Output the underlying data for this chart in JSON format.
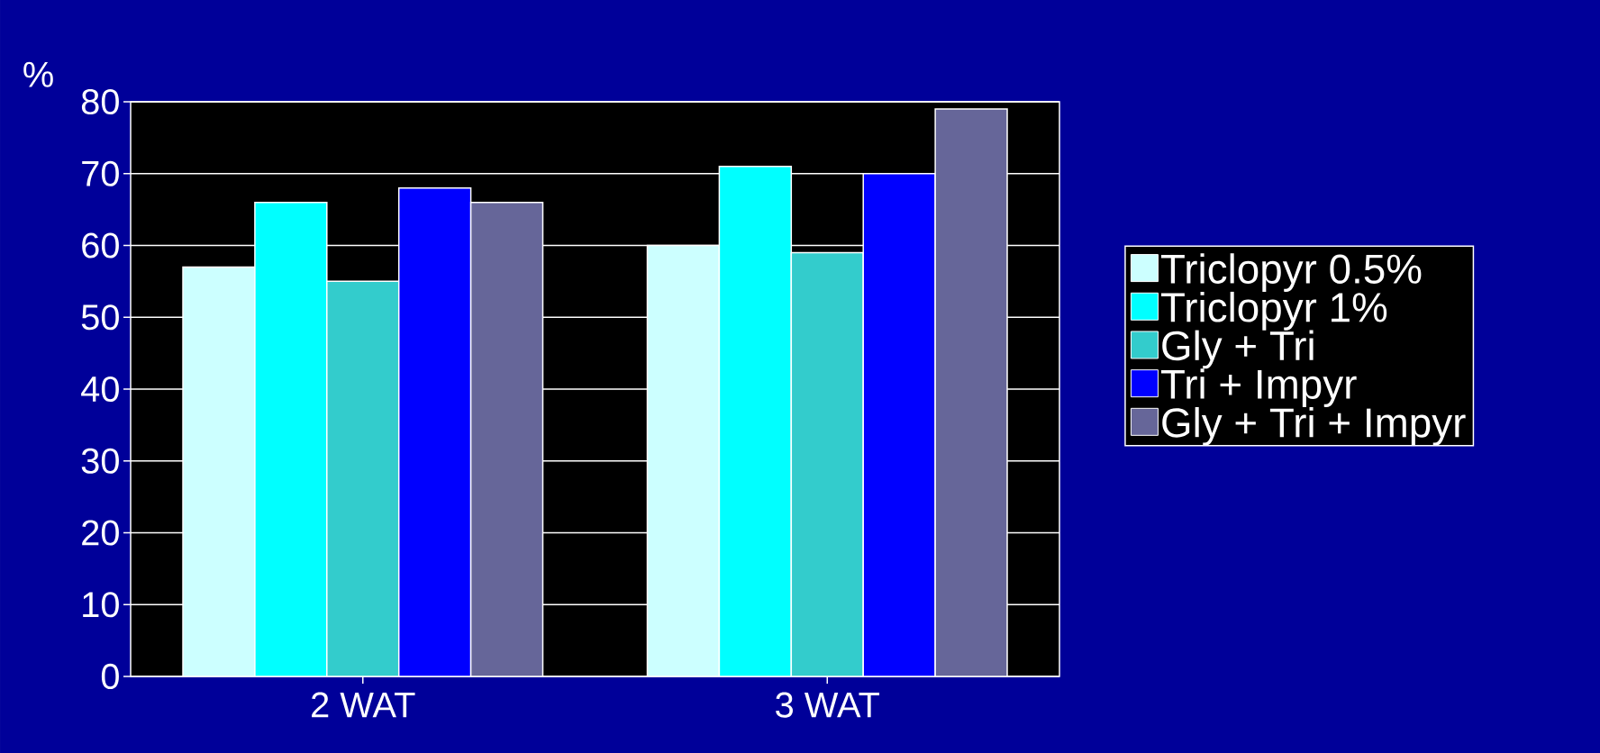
{
  "chart_data": {
    "type": "bar",
    "ylabel": "%",
    "categories": [
      "2 WAT",
      "3 WAT"
    ],
    "series": [
      {
        "name": "Triclopyr 0.5%",
        "color": "#ccffff",
        "values": [
          57,
          60
        ]
      },
      {
        "name": "Triclopyr 1%",
        "color": "#00ffff",
        "values": [
          66,
          71
        ]
      },
      {
        "name": "Gly + Tri",
        "color": "#33cccc",
        "values": [
          55,
          59
        ]
      },
      {
        "name": "Tri + Impyr",
        "color": "#0000ff",
        "values": [
          68,
          70
        ]
      },
      {
        "name": "Gly + Tri + Impyr",
        "color": "#666699",
        "values": [
          66,
          79
        ]
      }
    ],
    "ylim": [
      0,
      80
    ],
    "yticks": [
      0,
      10,
      20,
      30,
      40,
      50,
      60,
      70,
      80
    ],
    "grid": "y",
    "legend": "right"
  }
}
